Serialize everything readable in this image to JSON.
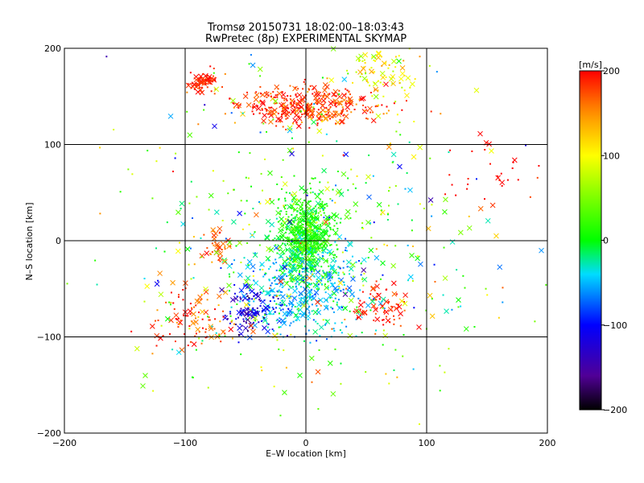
{
  "chart_data": {
    "type": "scatter",
    "title": "Tromsø 20150731 18:02:00–18:03:43",
    "subtitle": "RwPretec (8p) EXPERIMENTAL SKYMAP",
    "xlabel": "E–W location [km]",
    "ylabel": "N–S location [km]",
    "xlim": [
      -200,
      200
    ],
    "ylim": [
      -200,
      200
    ],
    "x_ticks": [
      "−200",
      "−100",
      "0",
      "100",
      "200"
    ],
    "y_ticks": [
      "−200",
      "−100",
      "0",
      "100",
      "200"
    ],
    "grid": true,
    "markers": [
      "cross",
      "dot"
    ],
    "colorbar": {
      "label": "[m/s]",
      "range": [
        -200,
        200
      ],
      "ticks": [
        "200",
        "100",
        "0",
        "−100",
        "−200"
      ],
      "colormap": "rainbow: black → purple → blue → cyan → green → yellow → orange → red"
    },
    "clusters": [
      {
        "x": 0,
        "y": 5,
        "sx": 12,
        "sy": 22,
        "n": 650,
        "v_mean": 10,
        "v_sd": 15
      },
      {
        "x": -5,
        "y": -50,
        "sx": 25,
        "sy": 25,
        "n": 420,
        "v_mean": -45,
        "v_sd": 20
      },
      {
        "x": 0,
        "y": 140,
        "sx": 30,
        "sy": 10,
        "n": 360,
        "v_mean": 180,
        "v_sd": 25
      },
      {
        "x": -85,
        "y": 165,
        "sx": 6,
        "sy": 6,
        "n": 70,
        "v_mean": 190,
        "v_sd": 10
      },
      {
        "x": 60,
        "y": 175,
        "sx": 15,
        "sy": 15,
        "n": 90,
        "v_mean": 95,
        "v_sd": 25
      },
      {
        "x": -45,
        "y": -75,
        "sx": 10,
        "sy": 12,
        "n": 120,
        "v_mean": -120,
        "v_sd": 25
      },
      {
        "x": -95,
        "y": -80,
        "sx": 15,
        "sy": 15,
        "n": 100,
        "v_mean": 180,
        "v_sd": 25
      },
      {
        "x": -75,
        "y": -5,
        "sx": 5,
        "sy": 10,
        "n": 35,
        "v_mean": 170,
        "v_sd": 20
      },
      {
        "x": 65,
        "y": -70,
        "sx": 12,
        "sy": 12,
        "n": 70,
        "v_mean": 190,
        "v_sd": 15
      },
      {
        "x": 150,
        "y": 70,
        "sx": 25,
        "sy": 18,
        "n": 30,
        "v_mean": 200,
        "v_sd": 10
      },
      {
        "x": 0,
        "y": 0,
        "sx": 75,
        "sy": 85,
        "n": 520,
        "v_mean": 30,
        "v_sd": 70
      }
    ]
  }
}
